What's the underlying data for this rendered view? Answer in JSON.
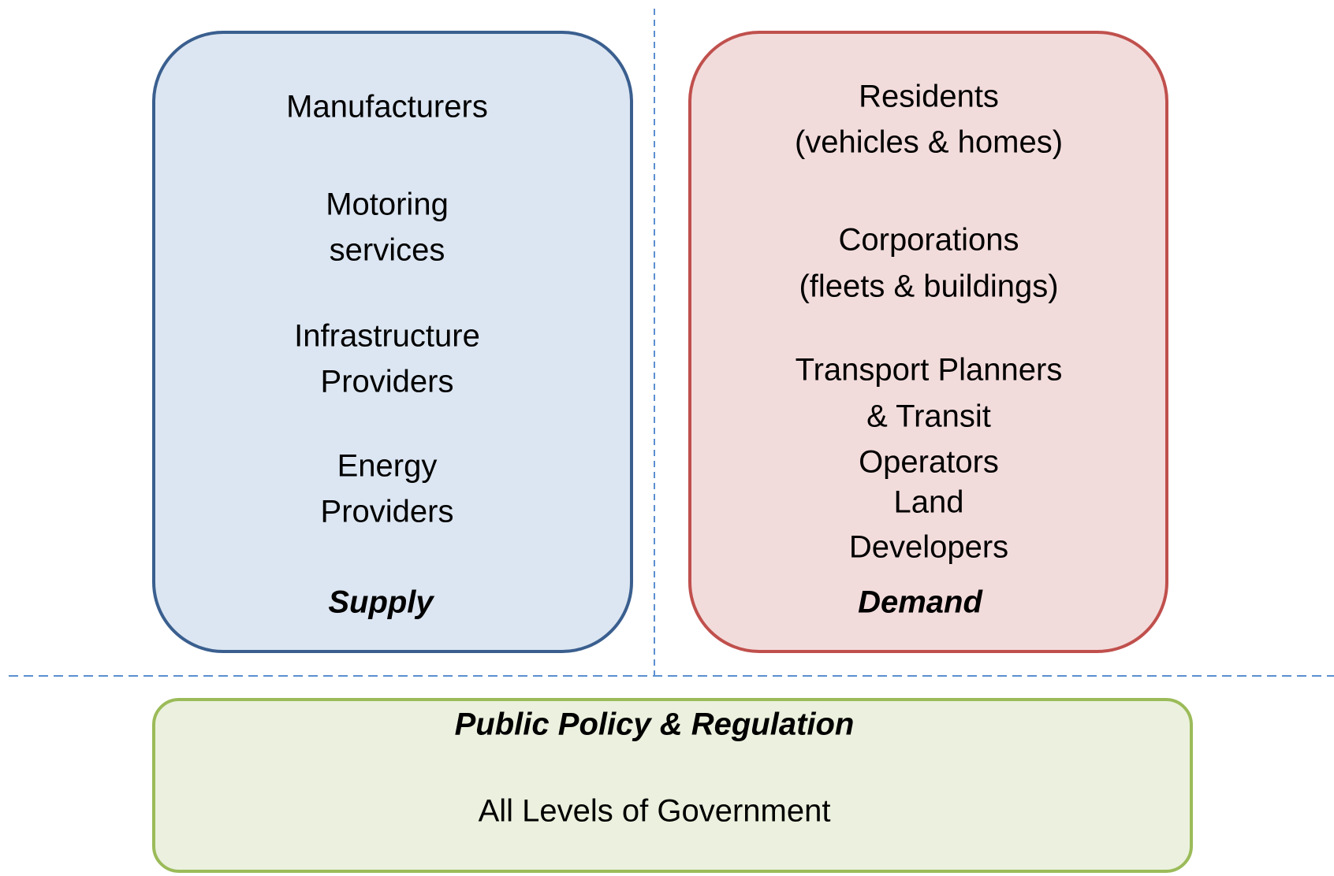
{
  "supply": {
    "label": "Supply",
    "items": [
      [
        "Manufacturers"
      ],
      [
        "Motoring",
        "services"
      ],
      [
        "Infrastructure",
        "Providers"
      ],
      [
        "Energy",
        "Providers"
      ]
    ]
  },
  "demand": {
    "label": "Demand",
    "items": [
      [
        "Residents",
        "(vehicles & homes)"
      ],
      [
        "Corporations",
        "(fleets & buildings)"
      ],
      [
        "Transport Planners",
        "& Transit",
        "Operators"
      ],
      [
        "Land",
        "Developers"
      ]
    ]
  },
  "policy": {
    "title": "Public Policy & Regulation",
    "items": [
      "All Levels of Government"
    ]
  }
}
